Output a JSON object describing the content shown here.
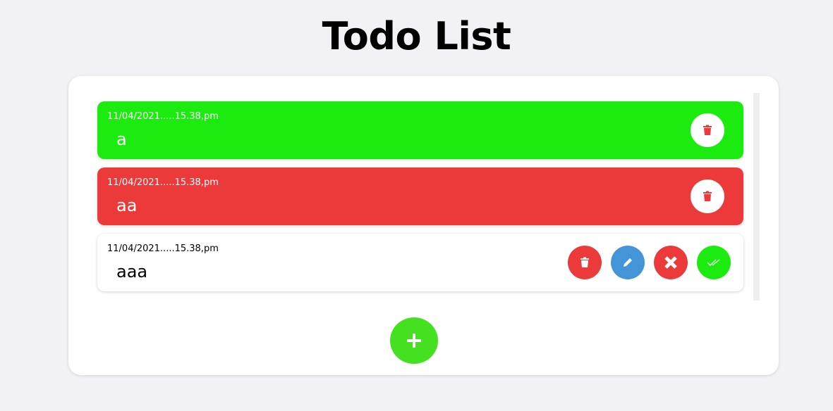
{
  "title": "Todo List",
  "colors": {
    "done": "#1ceb10",
    "cancelled": "#ec3a3b",
    "edit": "#4395d7",
    "add": "#45e01f"
  },
  "todos": [
    {
      "date": "11/04/2021.....15.38,pm",
      "text": "a",
      "status": "done",
      "actions": [
        "trash-icon"
      ]
    },
    {
      "date": "11/04/2021.....15.38,pm",
      "text": "aa",
      "status": "cancelled",
      "actions": [
        "trash-icon"
      ]
    },
    {
      "date": "11/04/2021.....15.38,pm",
      "text": "aaa",
      "status": "pending",
      "actions": [
        "trash-icon",
        "pencil-icon",
        "x-icon",
        "double-check-icon"
      ]
    }
  ],
  "add_button": "plus-icon"
}
